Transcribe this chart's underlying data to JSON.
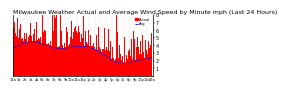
{
  "title": "Milwaukee Weather Actual and Average Wind Speed by Minute mph (Last 24 Hours)",
  "background_color": "#ffffff",
  "plot_bg_color": "#ffffff",
  "bar_color": "#ff0000",
  "line_color": "#0000ff",
  "grid_color": "#aaaaaa",
  "n_points": 1440,
  "ylim": [
    0,
    8
  ],
  "yticks": [
    1,
    2,
    3,
    4,
    5,
    6,
    7,
    8
  ],
  "legend_actual": "Actual",
  "legend_avg": "Avg",
  "title_fontsize": 4.5,
  "tick_fontsize": 3.5
}
